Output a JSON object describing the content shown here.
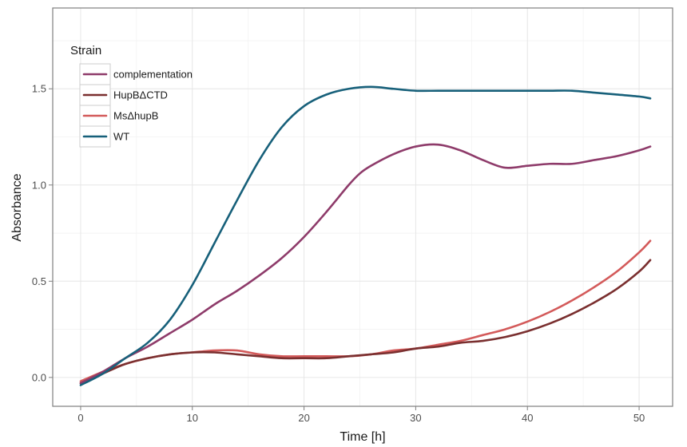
{
  "chart_data": {
    "type": "line",
    "xlabel": "Time [h]",
    "ylabel": "Absorbance",
    "xlim": [
      -2.5,
      53
    ],
    "ylim": [
      -0.15,
      1.92
    ],
    "x_ticks": [
      0,
      10,
      20,
      30,
      40,
      50
    ],
    "y_ticks": [
      0.0,
      0.5,
      1.0,
      1.5
    ],
    "y_tick_labels": [
      "0.0",
      "0.5",
      "1.0",
      "1.5"
    ],
    "grid": true,
    "legend": {
      "title": "Strain",
      "position": "top-left"
    },
    "series": [
      {
        "name": "complementation",
        "color": "#8e3b6a",
        "x": [
          0,
          2,
          4,
          6,
          8,
          10,
          12,
          14,
          16,
          18,
          20,
          22,
          24,
          25,
          26,
          28,
          30,
          32,
          34,
          36,
          38,
          40,
          42,
          44,
          46,
          48,
          50,
          51
        ],
        "y": [
          -0.03,
          0.03,
          0.1,
          0.16,
          0.23,
          0.3,
          0.38,
          0.45,
          0.53,
          0.62,
          0.73,
          0.86,
          1.0,
          1.06,
          1.1,
          1.16,
          1.2,
          1.21,
          1.18,
          1.13,
          1.09,
          1.1,
          1.11,
          1.11,
          1.13,
          1.15,
          1.18,
          1.2
        ]
      },
      {
        "name": "HupBΔCTD",
        "color": "#7a2f2f",
        "x": [
          0,
          2,
          4,
          6,
          8,
          10,
          12,
          14,
          16,
          18,
          20,
          22,
          24,
          26,
          28,
          30,
          32,
          34,
          36,
          38,
          40,
          42,
          44,
          46,
          48,
          50,
          51
        ],
        "y": [
          -0.03,
          0.02,
          0.07,
          0.1,
          0.12,
          0.13,
          0.13,
          0.12,
          0.11,
          0.1,
          0.1,
          0.1,
          0.11,
          0.12,
          0.13,
          0.15,
          0.16,
          0.18,
          0.19,
          0.21,
          0.24,
          0.28,
          0.33,
          0.39,
          0.46,
          0.55,
          0.61
        ]
      },
      {
        "name": "MsΔhupB",
        "color": "#d35a5a",
        "x": [
          0,
          2,
          4,
          6,
          8,
          10,
          12,
          14,
          16,
          18,
          20,
          22,
          24,
          26,
          28,
          30,
          32,
          34,
          36,
          38,
          40,
          42,
          44,
          46,
          48,
          50,
          51
        ],
        "y": [
          -0.02,
          0.03,
          0.07,
          0.1,
          0.12,
          0.13,
          0.14,
          0.14,
          0.12,
          0.11,
          0.11,
          0.11,
          0.11,
          0.12,
          0.14,
          0.15,
          0.17,
          0.19,
          0.22,
          0.25,
          0.29,
          0.34,
          0.4,
          0.47,
          0.55,
          0.65,
          0.71
        ]
      },
      {
        "name": "WT",
        "color": "#17607a",
        "x": [
          0,
          2,
          4,
          6,
          8,
          10,
          12,
          14,
          16,
          18,
          20,
          22,
          24,
          26,
          28,
          30,
          32,
          34,
          36,
          38,
          40,
          42,
          44,
          46,
          48,
          50,
          51
        ],
        "y": [
          -0.04,
          0.02,
          0.1,
          0.18,
          0.3,
          0.48,
          0.7,
          0.92,
          1.13,
          1.3,
          1.41,
          1.47,
          1.5,
          1.51,
          1.5,
          1.49,
          1.49,
          1.49,
          1.49,
          1.49,
          1.49,
          1.49,
          1.49,
          1.48,
          1.47,
          1.46,
          1.45
        ]
      }
    ]
  }
}
